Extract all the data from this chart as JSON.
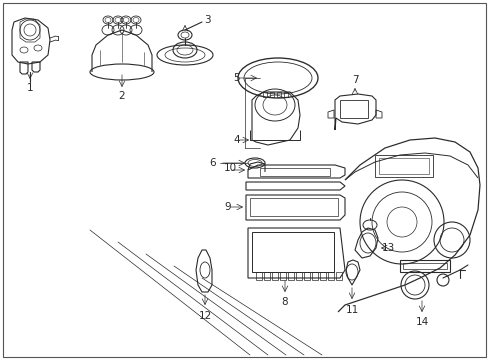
{
  "bg_color": "#f5f5f5",
  "line_color": "#2a2a2a",
  "fig_width": 4.89,
  "fig_height": 3.6,
  "dpi": 100
}
